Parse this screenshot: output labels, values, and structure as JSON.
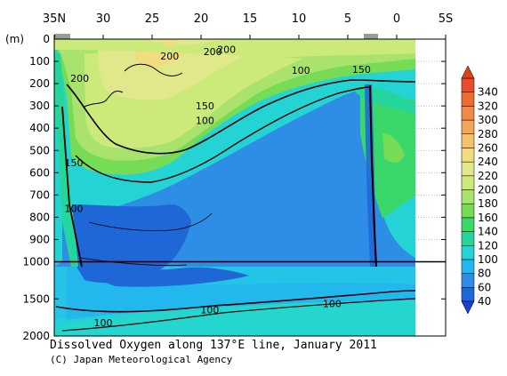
{
  "chart_data": {
    "type": "heatmap",
    "title": "Dissolved Oxygen along 137°E line, January 2011",
    "credit": "(C) Japan Meteorological Agency",
    "x_axis": {
      "ticks": [
        35,
        30,
        25,
        20,
        15,
        10,
        5,
        0,
        -5
      ],
      "tick_labels": [
        "35N",
        "30",
        "25",
        "20",
        "15",
        "10",
        "5",
        "0",
        "5S"
      ],
      "range": [
        35,
        -5
      ]
    },
    "y_axis": {
      "unit_label": "(m)",
      "upper_ticks": [
        0,
        100,
        200,
        300,
        400,
        500,
        600,
        700,
        800,
        900,
        1000
      ],
      "lower_ticks": [
        1000,
        1500,
        2000
      ],
      "upper_range": [
        0,
        1000
      ],
      "lower_range": [
        1000,
        2000
      ]
    },
    "colorbar": {
      "levels": [
        40,
        60,
        80,
        100,
        120,
        140,
        160,
        180,
        200,
        220,
        240,
        260,
        280,
        300,
        320,
        340
      ],
      "colors": [
        "#1f66d6",
        "#2e8ee6",
        "#22b8ee",
        "#24d3d3",
        "#25d69c",
        "#3ad86a",
        "#76dc55",
        "#a9e26d",
        "#cbea7a",
        "#e1e88b",
        "#f1dd7e",
        "#f5c26a",
        "#f3a657",
        "#f08a46",
        "#ec6c36",
        "#e84e2c"
      ],
      "under_color": "#1a3fd1",
      "over_color": "#e0411f"
    },
    "contour_labels": [
      {
        "text": "200",
        "lat": 23.2,
        "depth": 75
      },
      {
        "text": "200",
        "lat": 18.8,
        "depth": 55
      },
      {
        "text": "200",
        "lat": 17.4,
        "depth": 45
      },
      {
        "text": "200",
        "lat": 32.4,
        "depth": 175
      },
      {
        "text": "100",
        "lat": 9.8,
        "depth": 140
      },
      {
        "text": "150",
        "lat": 3.6,
        "depth": 135
      },
      {
        "text": "150",
        "lat": 19.6,
        "depth": 300
      },
      {
        "text": "100",
        "lat": 19.6,
        "depth": 365
      },
      {
        "text": "150",
        "lat": 33.0,
        "depth": 555
      },
      {
        "text": "100",
        "lat": 33.0,
        "depth": 760
      },
      {
        "text": "100",
        "lat": 6.6,
        "depth": 1560
      },
      {
        "text": "100",
        "lat": 19.1,
        "depth": 1645
      },
      {
        "text": "100",
        "lat": 30.0,
        "depth": 1820
      }
    ]
  }
}
